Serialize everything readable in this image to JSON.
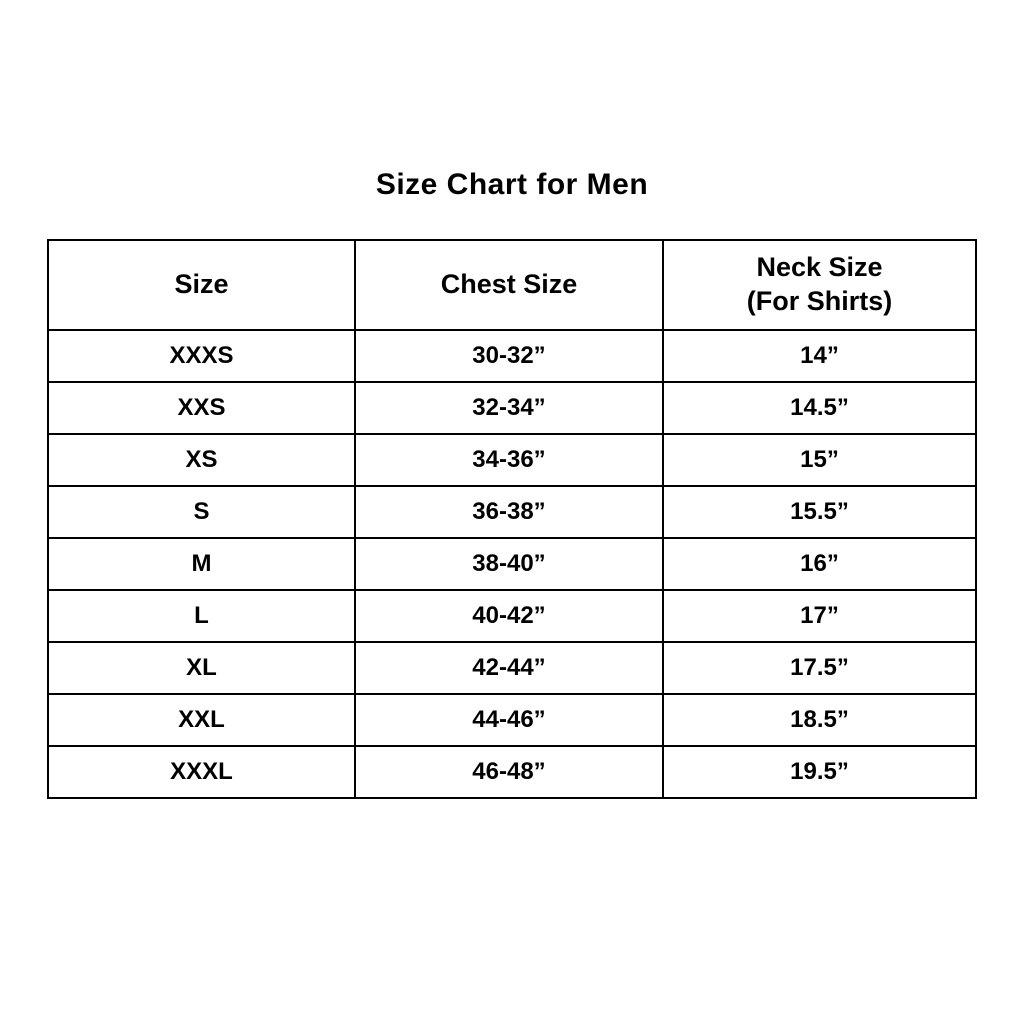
{
  "page": {
    "title": "Size Chart for Men",
    "background_color": "#ffffff",
    "text_color": "#000000",
    "border_color": "#000000"
  },
  "chart_data": {
    "type": "table",
    "title": "Size Chart for Men",
    "columns": [
      "Size",
      "Chest Size",
      "Neck Size\n(For Shirts)"
    ],
    "rows": [
      [
        "XXXS",
        "30-32”",
        "14”"
      ],
      [
        "XXS",
        "32-34”",
        "14.5”"
      ],
      [
        "XS",
        "34-36”",
        "15”"
      ],
      [
        "S",
        "36-38”",
        "15.5”"
      ],
      [
        "M",
        "38-40”",
        "16”"
      ],
      [
        "L",
        "40-42”",
        "17”"
      ],
      [
        "XL",
        "42-44”",
        "17.5”"
      ],
      [
        "XXL",
        "44-46”",
        "18.5”"
      ],
      [
        "XXXL",
        "46-48”",
        "19.5”"
      ]
    ]
  }
}
